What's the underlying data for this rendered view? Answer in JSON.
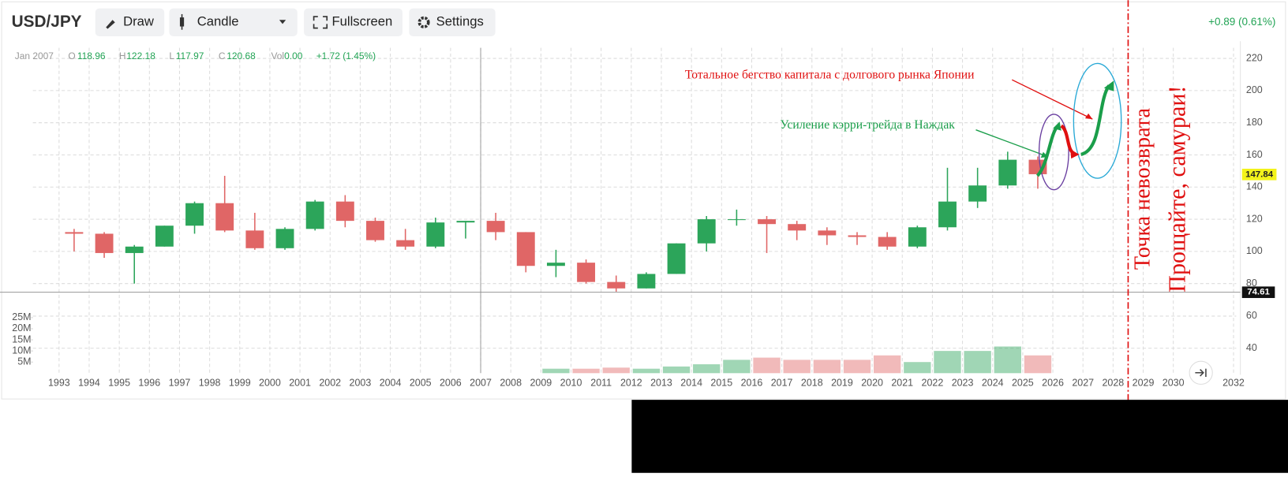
{
  "toolbar": {
    "title": "USD/JPY",
    "buttons": [
      "Draw",
      "Candle",
      "Fullscreen",
      "Settings"
    ],
    "change": "+0.89 (0.61%)"
  },
  "legend_info": {
    "date": "Jan 2007",
    "open_label": "O",
    "open": 118.96,
    "high_label": "H",
    "high": 122.18,
    "low_label": "L",
    "low": 117.97,
    "close_label": "C",
    "close": 120.68,
    "volume_label": "Vol",
    "volume": "0.00",
    "change": "+1.72 (1.45%)"
  },
  "chart_data": {
    "type": "candlestick",
    "x": [
      1993,
      1994,
      1995,
      1996,
      1997,
      1998,
      1999,
      2000,
      2001,
      2002,
      2003,
      2004,
      2005,
      2006,
      2007,
      2008,
      2009,
      2010,
      2011,
      2012,
      2013,
      2014,
      2015,
      2016,
      2017,
      2018,
      2019,
      2020,
      2021,
      2022,
      2023,
      2024,
      2025
    ],
    "open": [
      112,
      111,
      99,
      103,
      116,
      130,
      113,
      102,
      114,
      131,
      119,
      107,
      103,
      118,
      119,
      112,
      91,
      93,
      81,
      77,
      86,
      105,
      120,
      120,
      117,
      113,
      110,
      109,
      103,
      115,
      131,
      141,
      157
    ],
    "high": [
      114,
      112,
      104,
      116,
      131,
      147,
      124,
      115,
      132,
      135,
      121,
      114,
      121,
      119,
      124,
      112,
      101,
      95,
      85,
      87,
      105,
      122,
      126,
      122,
      119,
      115,
      112,
      112,
      116,
      152,
      152,
      162,
      159
    ],
    "low": [
      100,
      96,
      80,
      103,
      111,
      112,
      101,
      101,
      113,
      115,
      106,
      101,
      102,
      108,
      107,
      87,
      84,
      80,
      75,
      77,
      86,
      100,
      116,
      99,
      107,
      104,
      104,
      101,
      102,
      113,
      127,
      139,
      139
    ],
    "close": [
      111,
      99,
      103,
      116,
      130,
      113,
      102,
      114,
      131,
      119,
      107,
      103,
      118,
      119,
      112,
      91,
      93,
      81,
      77,
      86,
      105,
      120,
      120,
      117,
      113,
      110,
      109,
      103,
      115,
      131,
      141,
      157,
      148
    ],
    "up_color": "#2ca55a",
    "down_color": "#e06666",
    "xlim": [
      1992.13,
      2032.09
    ],
    "xticks": [
      1993,
      1994,
      1995,
      1996,
      1997,
      1998,
      1999,
      2000,
      2001,
      2002,
      2003,
      2004,
      2005,
      2006,
      2007,
      2008,
      2009,
      2010,
      2011,
      2012,
      2013,
      2014,
      2015,
      2016,
      2017,
      2018,
      2019,
      2020,
      2021,
      2022,
      2023,
      2024,
      2025,
      2026,
      2027,
      2028,
      2029,
      2030,
      2032
    ],
    "ylim": [
      66.4,
      226.6
    ],
    "yticks": [
      80,
      100,
      120,
      140,
      160,
      180,
      200,
      220
    ],
    "grid": true,
    "last_price": 147.84,
    "crosshair": {
      "x": 2007,
      "y": 74.61
    },
    "marker_line_x": 2028.5,
    "volume": {
      "x": [
        2009,
        2010,
        2011,
        2012,
        2013,
        2014,
        2015,
        2016,
        2017,
        2018,
        2019,
        2020,
        2021,
        2022,
        2023,
        2024,
        2025
      ],
      "values": [
        2000000,
        2000000,
        2500000,
        2000000,
        3000000,
        4000000,
        6000000,
        7000000,
        6000000,
        6000000,
        6000000,
        8000000,
        5000000,
        10000000,
        10000000,
        12000000,
        8000000
      ],
      "ylim": [
        0,
        29000000
      ],
      "yticks": [
        {
          "value": 5000000,
          "label": "5M"
        },
        {
          "value": 10000000,
          "label": "10M"
        },
        {
          "value": 15000000,
          "label": "15M"
        },
        {
          "value": 20000000,
          "label": "20M"
        },
        {
          "value": 25000000,
          "label": "25M"
        }
      ],
      "y2lim": [
        24.4,
        64.6
      ],
      "y2ticks": [
        40,
        60
      ]
    },
    "annotations": [
      "Тотальное бегство капитала с долгового рынка Японии",
      "Усиление кэрри-трейда в Наждак",
      "Точка невозврата",
      "Прощайте, самураи!"
    ]
  }
}
